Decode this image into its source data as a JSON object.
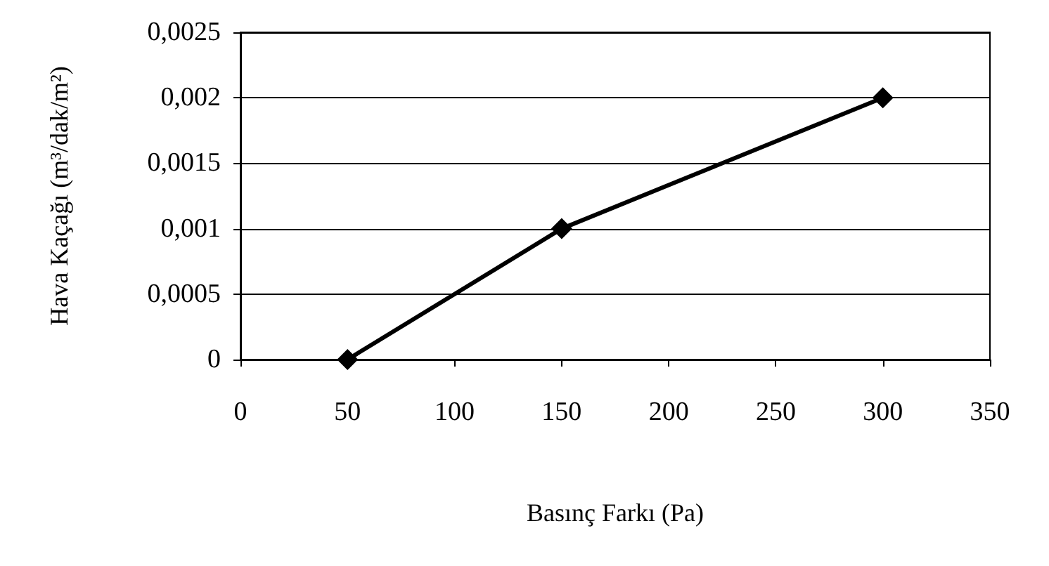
{
  "chart_data": {
    "type": "line",
    "xlabel": "Basınç Farkı (Pa)",
    "ylabel": "Hava Kaçağı (m³/dak/m²)",
    "x": [
      50,
      150,
      300
    ],
    "series": [
      {
        "color": "#000000",
        "values": [
          0,
          0.001,
          0.002
        ]
      }
    ],
    "xlim": [
      0,
      350
    ],
    "xticks": [
      0,
      50,
      100,
      150,
      200,
      250,
      300,
      350
    ],
    "ylim": [
      0,
      0.0025
    ],
    "yticks": [
      {
        "value": 0,
        "label": "0"
      },
      {
        "value": 0.0005,
        "label": "0,0005"
      },
      {
        "value": 0.001,
        "label": "0,001"
      },
      {
        "value": 0.0015,
        "label": "0,0015"
      },
      {
        "value": 0.002,
        "label": "0,002"
      },
      {
        "value": 0.0025,
        "label": "0,0025"
      }
    ],
    "grid": "y",
    "marker": "diamond",
    "line_style": "solid"
  }
}
